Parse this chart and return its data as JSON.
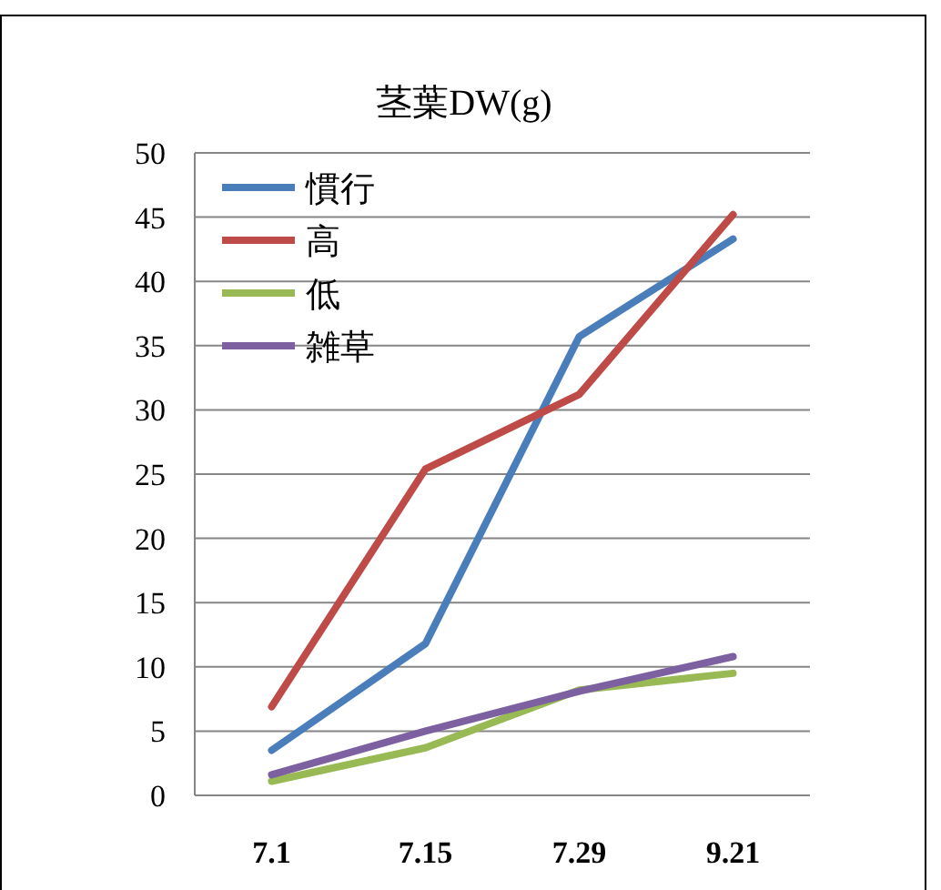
{
  "chart_data": {
    "type": "line",
    "title": "茎葉DW(g)",
    "categories": [
      "7.1",
      "7.15",
      "7.29",
      "9.21"
    ],
    "series": [
      {
        "name": "慣行",
        "color": "#4a7ebb",
        "values": [
          3.5,
          11.8,
          35.7,
          43.3
        ]
      },
      {
        "name": "高",
        "color": "#be4b48",
        "values": [
          6.9,
          25.4,
          31.2,
          45.2
        ]
      },
      {
        "name": "低",
        "color": "#98b954",
        "values": [
          1.1,
          3.7,
          8.2,
          9.5
        ]
      },
      {
        "name": "雑草",
        "color": "#7d60a0",
        "values": [
          1.6,
          5.0,
          8.1,
          10.8
        ]
      }
    ],
    "ylim": [
      0,
      50
    ],
    "yticks": [
      0,
      5,
      10,
      15,
      20,
      25,
      30,
      35,
      40,
      45,
      50
    ],
    "grid": "y",
    "legend": "top left",
    "marker": "none",
    "line_style": "solid"
  }
}
